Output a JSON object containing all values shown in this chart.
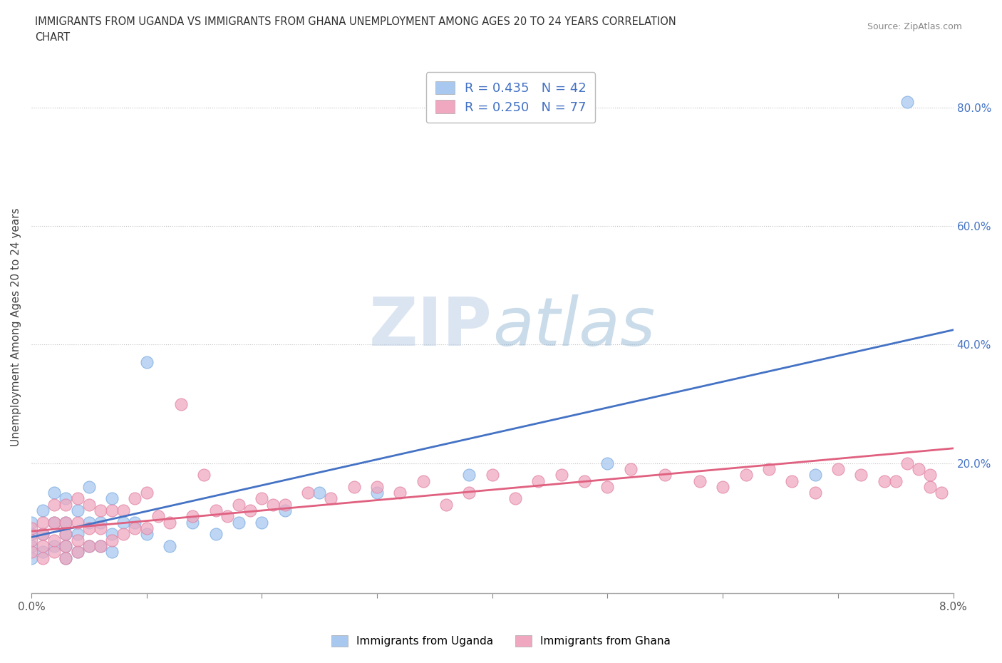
{
  "title_line1": "IMMIGRANTS FROM UGANDA VS IMMIGRANTS FROM GHANA UNEMPLOYMENT AMONG AGES 20 TO 24 YEARS CORRELATION",
  "title_line2": "CHART",
  "source": "Source: ZipAtlas.com",
  "ylabel": "Unemployment Among Ages 20 to 24 years",
  "xlim": [
    0.0,
    0.08
  ],
  "ylim": [
    -0.02,
    0.88
  ],
  "xticks": [
    0.0,
    0.01,
    0.02,
    0.03,
    0.04,
    0.05,
    0.06,
    0.07,
    0.08
  ],
  "ytick_labels": [
    "20.0%",
    "40.0%",
    "60.0%",
    "80.0%"
  ],
  "ytick_vals": [
    0.2,
    0.4,
    0.6,
    0.8
  ],
  "uganda_color": "#a8c8f0",
  "ghana_color": "#f0a8c0",
  "uganda_line_color": "#4472c4",
  "ghana_line_color": "#e06080",
  "legend_text_color": "#4472c4",
  "R_uganda": 0.435,
  "N_uganda": 42,
  "R_ghana": 0.25,
  "N_ghana": 77,
  "watermark": "ZIPatlas",
  "uganda_trend_x0": 0.0,
  "uganda_trend_y0": 0.075,
  "uganda_trend_x1": 0.08,
  "uganda_trend_y1": 0.425,
  "ghana_trend_x0": 0.0,
  "ghana_trend_y0": 0.085,
  "ghana_trend_x1": 0.08,
  "ghana_trend_y1": 0.225,
  "uganda_scatter_x": [
    0.0,
    0.0,
    0.0,
    0.0,
    0.001,
    0.001,
    0.001,
    0.002,
    0.002,
    0.002,
    0.003,
    0.003,
    0.003,
    0.003,
    0.003,
    0.004,
    0.004,
    0.004,
    0.005,
    0.005,
    0.005,
    0.006,
    0.006,
    0.007,
    0.007,
    0.007,
    0.008,
    0.009,
    0.01,
    0.01,
    0.012,
    0.014,
    0.016,
    0.018,
    0.02,
    0.022,
    0.025,
    0.03,
    0.038,
    0.05,
    0.068,
    0.076
  ],
  "uganda_scatter_y": [
    0.04,
    0.06,
    0.08,
    0.1,
    0.05,
    0.08,
    0.12,
    0.06,
    0.1,
    0.15,
    0.04,
    0.06,
    0.08,
    0.1,
    0.14,
    0.05,
    0.08,
    0.12,
    0.06,
    0.1,
    0.16,
    0.06,
    0.1,
    0.05,
    0.08,
    0.14,
    0.1,
    0.1,
    0.08,
    0.37,
    0.06,
    0.1,
    0.08,
    0.1,
    0.1,
    0.12,
    0.15,
    0.15,
    0.18,
    0.2,
    0.18,
    0.81
  ],
  "ghana_scatter_x": [
    0.0,
    0.0,
    0.0,
    0.001,
    0.001,
    0.001,
    0.001,
    0.002,
    0.002,
    0.002,
    0.002,
    0.003,
    0.003,
    0.003,
    0.003,
    0.003,
    0.004,
    0.004,
    0.004,
    0.004,
    0.005,
    0.005,
    0.005,
    0.006,
    0.006,
    0.006,
    0.007,
    0.007,
    0.008,
    0.008,
    0.009,
    0.009,
    0.01,
    0.01,
    0.011,
    0.012,
    0.013,
    0.014,
    0.015,
    0.016,
    0.017,
    0.018,
    0.019,
    0.02,
    0.021,
    0.022,
    0.024,
    0.026,
    0.028,
    0.03,
    0.032,
    0.034,
    0.036,
    0.038,
    0.04,
    0.042,
    0.044,
    0.046,
    0.048,
    0.05,
    0.052,
    0.055,
    0.058,
    0.06,
    0.062,
    0.064,
    0.066,
    0.068,
    0.07,
    0.072,
    0.074,
    0.075,
    0.076,
    0.077,
    0.078,
    0.078,
    0.079
  ],
  "ghana_scatter_y": [
    0.05,
    0.07,
    0.09,
    0.04,
    0.06,
    0.08,
    0.1,
    0.05,
    0.07,
    0.1,
    0.13,
    0.04,
    0.06,
    0.08,
    0.1,
    0.13,
    0.05,
    0.07,
    0.1,
    0.14,
    0.06,
    0.09,
    0.13,
    0.06,
    0.09,
    0.12,
    0.07,
    0.12,
    0.08,
    0.12,
    0.09,
    0.14,
    0.09,
    0.15,
    0.11,
    0.1,
    0.3,
    0.11,
    0.18,
    0.12,
    0.11,
    0.13,
    0.12,
    0.14,
    0.13,
    0.13,
    0.15,
    0.14,
    0.16,
    0.16,
    0.15,
    0.17,
    0.13,
    0.15,
    0.18,
    0.14,
    0.17,
    0.18,
    0.17,
    0.16,
    0.19,
    0.18,
    0.17,
    0.16,
    0.18,
    0.19,
    0.17,
    0.15,
    0.19,
    0.18,
    0.17,
    0.17,
    0.2,
    0.19,
    0.16,
    0.18,
    0.15
  ]
}
